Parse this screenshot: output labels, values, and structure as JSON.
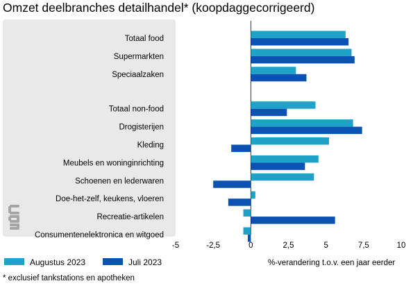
{
  "chart_data": {
    "type": "bar",
    "orientation": "horizontal",
    "title": "Omzet deelbranches detailhandel* (koopdaggecorrigeerd)",
    "xlabel": "%-verandering t.o.v. een jaar eerder",
    "xlim": [
      -5,
      10
    ],
    "xticks": [
      "-5",
      "-2,5",
      "0",
      "2,5",
      "5",
      "7,5",
      "10"
    ],
    "xtick_values": [
      -5,
      -2.5,
      0,
      2.5,
      5,
      7.5,
      10
    ],
    "groups": [
      [
        "Totaal food",
        "Supermarkten",
        "Speciaalzaken"
      ],
      [
        "Totaal non-food",
        "Drogisterijen",
        "Kleding",
        "Meubels en woninginrichting",
        "Schoenen en lederwaren",
        "Doe-het-zelf, keukens, vloeren",
        "Recreatie-artikelen",
        "Consumentenelektronica en witgoed"
      ]
    ],
    "categories": [
      "Totaal food",
      "Supermarkten",
      "Speciaalzaken",
      "Totaal non-food",
      "Drogisterijen",
      "Kleding",
      "Meubels en woninginrichting",
      "Schoenen en lederwaren",
      "Doe-het-zelf, keukens, vloeren",
      "Recreatie-artikelen",
      "Consumentenelektronica en witgoed"
    ],
    "series": [
      {
        "name": "Augustus 2023",
        "color": "#1fa2c8",
        "values": [
          6.3,
          6.7,
          3.0,
          4.3,
          6.8,
          5.2,
          4.5,
          4.2,
          0.3,
          -0.5,
          -0.5
        ]
      },
      {
        "name": "Juli 2023",
        "color": "#0c52b3",
        "values": [
          6.5,
          6.9,
          3.7,
          2.4,
          7.4,
          -1.3,
          3.6,
          -2.5,
          -1.5,
          5.6,
          -0.2
        ]
      }
    ],
    "grid": false,
    "legend_position": "bottom-left",
    "background_panel_color": "#e9e9e9",
    "footnote": "* exclusief tankstations en apotheken",
    "logo": "cbs-logo"
  }
}
